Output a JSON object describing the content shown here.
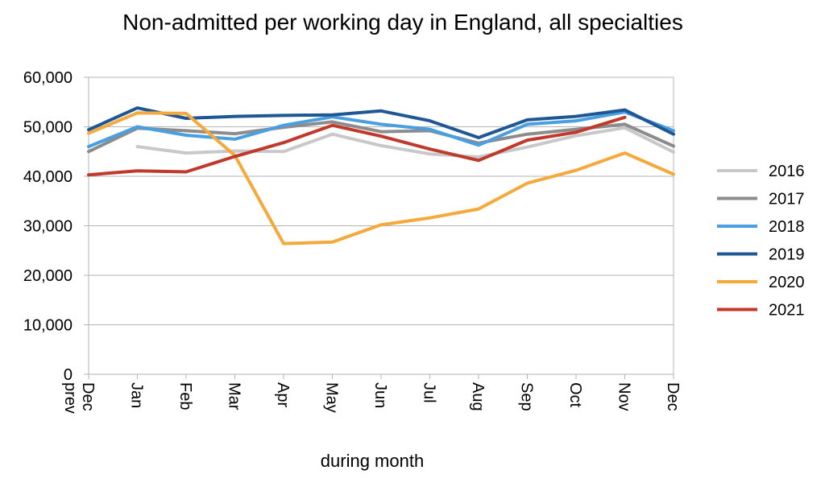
{
  "chart_data": {
    "type": "line",
    "title": "Non-admitted per working day in England, all specialties",
    "xlabel": "during month",
    "ylabel": "",
    "ylim": [
      0,
      60000
    ],
    "yticks": [
      "0",
      "10,000",
      "20,000",
      "30,000",
      "40,000",
      "50,000",
      "60,000"
    ],
    "ytick_values": [
      0,
      10000,
      20000,
      30000,
      40000,
      50000,
      60000
    ],
    "categories": [
      "Dec prev",
      "Jan",
      "Feb",
      "Mar",
      "Apr",
      "May",
      "Jun",
      "Jul",
      "Aug",
      "Sep",
      "Oct",
      "Nov",
      "Dec"
    ],
    "grid": true,
    "legend_position": "right",
    "series": [
      {
        "name": "2016",
        "color": "#c8c8c8",
        "values": [
          null,
          46000,
          44700,
          45100,
          45000,
          48500,
          46200,
          44500,
          43900,
          45900,
          48200,
          49800,
          44900
        ]
      },
      {
        "name": "2017",
        "color": "#8c8c8c",
        "values": [
          45000,
          49700,
          49200,
          48600,
          49900,
          51000,
          49000,
          49200,
          46700,
          48500,
          49500,
          50500,
          46100
        ]
      },
      {
        "name": "2018",
        "color": "#4a9fe0",
        "values": [
          46000,
          50000,
          48300,
          47500,
          50300,
          52000,
          50500,
          49500,
          46300,
          50500,
          51200,
          53000,
          49200
        ]
      },
      {
        "name": "2019",
        "color": "#1f5694",
        "values": [
          49400,
          53800,
          51700,
          52100,
          52300,
          52400,
          53200,
          51200,
          47800,
          51400,
          52100,
          53400,
          48500
        ]
      },
      {
        "name": "2020",
        "color": "#f5a93a",
        "values": [
          48700,
          52800,
          52700,
          44200,
          26400,
          26700,
          30200,
          31600,
          33400,
          38600,
          41200,
          44700,
          40400
        ]
      },
      {
        "name": "2021",
        "color": "#c0392b",
        "values": [
          40300,
          41100,
          40900,
          44000,
          46800,
          50300,
          48100,
          45500,
          43200,
          47300,
          48900,
          51900,
          null
        ]
      }
    ]
  }
}
